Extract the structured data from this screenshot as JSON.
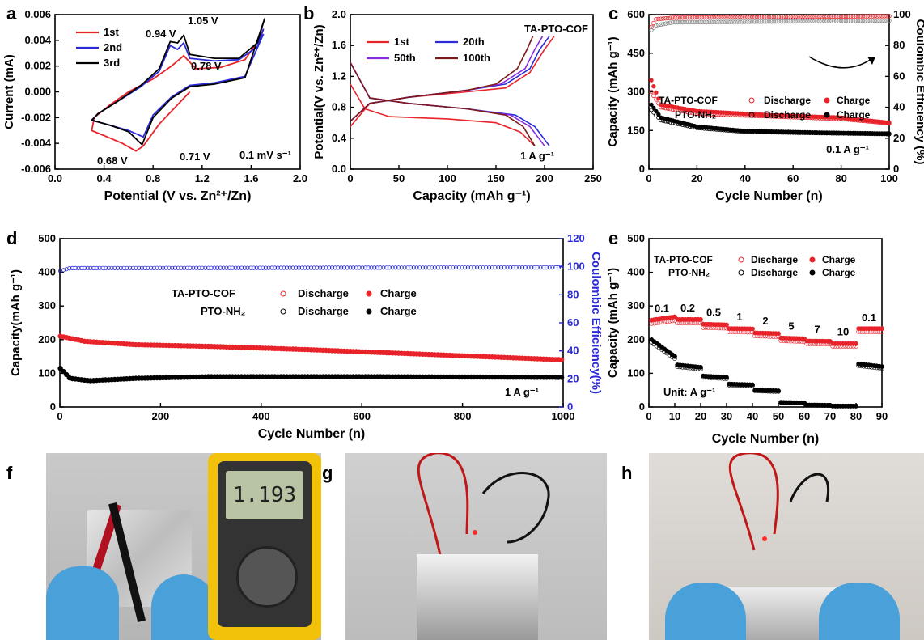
{
  "colors": {
    "red": "#e8232a",
    "blue": "#2a2ad8",
    "purple": "#8a2be2",
    "brown": "#7a1a1a",
    "black": "#000000"
  },
  "chart_data": [
    {
      "panel": "a",
      "type": "line",
      "xlabel": "Potential (V vs. Zn²⁺/Zn)",
      "ylabel": "Current (mA)",
      "xlim": [
        0.0,
        2.0
      ],
      "ylim": [
        -0.006,
        0.006
      ],
      "xticks": [
        "0.0",
        "0.4",
        "0.8",
        "1.2",
        "1.6",
        "2.0"
      ],
      "yticks": [
        "0.006",
        "0.004",
        "0.002",
        "0.000",
        "-0.002",
        "-0.004",
        "-0.006"
      ],
      "legend": [
        "1st",
        "2nd",
        "3rd"
      ],
      "annotations": [
        "1.05 V",
        "0.94 V",
        "0.78 V",
        "0.71 V",
        "0.68 V",
        "0.1 mV s⁻¹"
      ],
      "series": [
        {
          "name": "1st",
          "color": "#e8232a",
          "x": [
            1.1,
            0.85,
            0.72,
            0.66,
            0.55,
            0.4,
            0.3,
            0.32,
            0.45,
            0.6,
            0.8,
            0.95,
            1.05,
            1.15,
            1.35,
            1.55,
            1.66,
            1.7
          ],
          "y": [
            0.0,
            -0.0025,
            -0.0042,
            -0.0046,
            -0.004,
            -0.0034,
            -0.003,
            -0.002,
            -0.001,
            0.0,
            0.001,
            0.002,
            0.0028,
            0.0018,
            0.0019,
            0.0025,
            0.004,
            0.0048
          ]
        },
        {
          "name": "2nd",
          "color": "#2a2ad8",
          "x": [
            1.7,
            1.55,
            1.3,
            1.1,
            0.95,
            0.8,
            0.72,
            0.6,
            0.45,
            0.3,
            0.35,
            0.5,
            0.7,
            0.85,
            0.94,
            1.0,
            1.05,
            1.1,
            1.3,
            1.5,
            1.65,
            1.7
          ],
          "y": [
            0.0045,
            0.0012,
            0.0007,
            0.0005,
            -0.0004,
            -0.0018,
            -0.0035,
            -0.003,
            -0.0026,
            -0.0022,
            -0.0017,
            -0.0008,
            0.0004,
            0.0016,
            0.0036,
            0.0033,
            0.0038,
            0.0026,
            0.0024,
            0.0025,
            0.0035,
            0.0049
          ]
        },
        {
          "name": "3rd",
          "color": "#000000",
          "x": [
            1.71,
            1.55,
            1.3,
            1.1,
            0.95,
            0.8,
            0.71,
            0.6,
            0.45,
            0.3,
            0.35,
            0.5,
            0.7,
            0.85,
            0.94,
            1.0,
            1.05,
            1.1,
            1.3,
            1.5,
            1.65,
            1.71
          ],
          "y": [
            0.0057,
            0.0011,
            0.0006,
            0.0004,
            -0.0005,
            -0.002,
            -0.0041,
            -0.0031,
            -0.0026,
            -0.0022,
            -0.0017,
            -0.0008,
            0.0005,
            0.0018,
            0.0039,
            0.0038,
            0.0044,
            0.0029,
            0.0026,
            0.0026,
            0.0038,
            0.0057
          ]
        }
      ]
    },
    {
      "panel": "b",
      "type": "line",
      "xlabel": "Capacity (mAh g⁻¹)",
      "ylabel": "Potential(V vs. Zn²⁺/Zn)",
      "xlim": [
        0,
        250
      ],
      "ylim": [
        0.0,
        2.0
      ],
      "xticks": [
        "0",
        "50",
        "100",
        "150",
        "200",
        "250"
      ],
      "yticks": [
        "2.0",
        "1.6",
        "1.2",
        "0.8",
        "0.4",
        "0.0"
      ],
      "legend": [
        "1st",
        "20th",
        "50th",
        "100th"
      ],
      "annotations": [
        "TA-PTO-COF",
        "1 A g⁻¹"
      ],
      "series": [
        {
          "name": "1st",
          "color": "#e8232a",
          "discharge_x": [
            0,
            15,
            40,
            100,
            150,
            175,
            190
          ],
          "discharge_y": [
            1.1,
            0.78,
            0.68,
            0.65,
            0.6,
            0.48,
            0.3
          ],
          "charge_x": [
            0,
            20,
            60,
            120,
            160,
            185,
            200,
            210
          ],
          "charge_y": [
            0.55,
            0.85,
            0.93,
            1.0,
            1.05,
            1.25,
            1.55,
            1.72
          ]
        },
        {
          "name": "20th",
          "color": "#2a2ad8",
          "discharge_x": [
            0,
            20,
            60,
            120,
            170,
            190,
            205
          ],
          "discharge_y": [
            1.38,
            0.92,
            0.85,
            0.78,
            0.7,
            0.55,
            0.3
          ],
          "charge_x": [
            0,
            20,
            60,
            120,
            160,
            185,
            195,
            205
          ],
          "charge_y": [
            0.62,
            0.85,
            0.93,
            1.02,
            1.1,
            1.3,
            1.55,
            1.72
          ]
        },
        {
          "name": "50th",
          "color": "#8a2be2",
          "discharge_x": [
            0,
            20,
            60,
            120,
            165,
            185,
            200
          ],
          "discharge_y": [
            1.38,
            0.92,
            0.85,
            0.78,
            0.7,
            0.55,
            0.3
          ],
          "charge_x": [
            0,
            20,
            60,
            120,
            155,
            180,
            190,
            198
          ],
          "charge_y": [
            0.62,
            0.85,
            0.93,
            1.02,
            1.1,
            1.3,
            1.55,
            1.72
          ]
        },
        {
          "name": "100th",
          "color": "#7a1a1a",
          "discharge_x": [
            0,
            20,
            60,
            120,
            160,
            178,
            190
          ],
          "discharge_y": [
            1.38,
            0.92,
            0.85,
            0.78,
            0.7,
            0.55,
            0.3
          ],
          "charge_x": [
            0,
            20,
            60,
            120,
            150,
            172,
            182,
            188
          ],
          "charge_y": [
            0.62,
            0.85,
            0.93,
            1.02,
            1.1,
            1.3,
            1.55,
            1.72
          ]
        }
      ]
    },
    {
      "panel": "c",
      "type": "scatter",
      "xlabel": "Cycle Number (n)",
      "ylabel": "Capacity (mAh g⁻¹)",
      "y2label": "Coulombic Efficiency (%)",
      "xlim": [
        0,
        100
      ],
      "ylim": [
        0,
        600
      ],
      "y2lim": [
        0,
        100
      ],
      "xticks": [
        "0",
        "20",
        "40",
        "60",
        "80",
        "100"
      ],
      "yticks": [
        "600",
        "450",
        "300",
        "150",
        "0"
      ],
      "y2ticks": [
        "100",
        "80",
        "60",
        "40",
        "20",
        "0"
      ],
      "legend": [
        "TA-PTO-COF",
        "PTO-NH₂",
        "Discharge",
        "Charge"
      ],
      "annotations": [
        "0.1 A g⁻¹"
      ],
      "series": [
        {
          "name": "TA-PTO-COF Charge",
          "color": "#e8232a",
          "filled": true,
          "curve": [
            [
              1,
              345
            ],
            [
              5,
              250
            ],
            [
              20,
              225
            ],
            [
              50,
              210
            ],
            [
              80,
              200
            ],
            [
              100,
              180
            ]
          ]
        },
        {
          "name": "TA-PTO-COF Discharge",
          "color": "#e8232a",
          "filled": false,
          "curve": [
            [
              1,
              300
            ],
            [
              5,
              240
            ],
            [
              20,
              215
            ],
            [
              50,
              205
            ],
            [
              80,
              195
            ],
            [
              100,
              178
            ]
          ]
        },
        {
          "name": "PTO-NH₂ Charge",
          "color": "#000000",
          "filled": true,
          "curve": [
            [
              1,
              250
            ],
            [
              5,
              200
            ],
            [
              20,
              165
            ],
            [
              40,
              148
            ],
            [
              70,
              142
            ],
            [
              100,
              138
            ]
          ]
        },
        {
          "name": "PTO-NH₂ Discharge",
          "color": "#000000",
          "filled": false,
          "curve": [
            [
              1,
              230
            ],
            [
              5,
              190
            ],
            [
              20,
              160
            ],
            [
              40,
              145
            ],
            [
              70,
              140
            ],
            [
              100,
              136
            ]
          ]
        },
        {
          "name": "TA-PTO-COF CE",
          "color": "#e8232a",
          "filled": false,
          "axis": "y2",
          "curve": [
            [
              1,
              92
            ],
            [
              3,
              97
            ],
            [
              10,
              98
            ],
            [
              100,
              99
            ]
          ]
        },
        {
          "name": "PTO-NH₂ CE",
          "color": "#888888",
          "filled": false,
          "axis": "y2",
          "curve": [
            [
              1,
              90
            ],
            [
              3,
              93
            ],
            [
              10,
              95
            ],
            [
              100,
              96
            ]
          ]
        }
      ]
    },
    {
      "panel": "d",
      "type": "scatter",
      "xlabel": "Cycle Number (n)",
      "ylabel": "Capacity(mAh g⁻¹)",
      "y2label": "Coulombic Efficiency(%)",
      "xlim": [
        0,
        1000
      ],
      "ylim": [
        0,
        500
      ],
      "y2lim": [
        0,
        120
      ],
      "xticks": [
        "0",
        "200",
        "400",
        "600",
        "800",
        "1000"
      ],
      "yticks": [
        "500",
        "400",
        "300",
        "200",
        "100",
        "0"
      ],
      "y2ticks": [
        "120",
        "100",
        "80",
        "60",
        "40",
        "20",
        "0"
      ],
      "legend": [
        "TA-PTO-COF",
        "PTO-NH₂",
        "Discharge",
        "Charge"
      ],
      "annotations": [
        "1 A g⁻¹"
      ],
      "series": [
        {
          "name": "TA-PTO-COF",
          "color": "#e8232a",
          "curve": [
            [
              1,
              210
            ],
            [
              50,
              195
            ],
            [
              150,
              185
            ],
            [
              300,
              180
            ],
            [
              500,
              170
            ],
            [
              800,
              152
            ],
            [
              1000,
              140
            ]
          ]
        },
        {
          "name": "PTO-NH₂",
          "color": "#000000",
          "curve": [
            [
              1,
              115
            ],
            [
              20,
              85
            ],
            [
              60,
              78
            ],
            [
              150,
              85
            ],
            [
              300,
              90
            ],
            [
              600,
              90
            ],
            [
              1000,
              88
            ]
          ]
        },
        {
          "name": "CE",
          "color": "#2a2ad8",
          "axis": "y2",
          "curve": [
            [
              1,
              97
            ],
            [
              20,
              99
            ],
            [
              1000,
              99.5
            ]
          ]
        }
      ]
    },
    {
      "panel": "e",
      "type": "scatter",
      "xlabel": "Cycle Number (n)",
      "ylabel": "Capacity (mAh g⁻¹)",
      "xlim": [
        0,
        90
      ],
      "ylim": [
        0,
        500
      ],
      "xticks": [
        "0",
        "10",
        "20",
        "30",
        "40",
        "50",
        "60",
        "70",
        "80",
        "90"
      ],
      "yticks": [
        "500",
        "400",
        "300",
        "200",
        "100",
        "0"
      ],
      "legend": [
        "TA-PTO-COF",
        "PTO-NH₂",
        "Discharge",
        "Charge"
      ],
      "rate_labels": [
        "0.1",
        "0.2",
        "0.5",
        "1",
        "2",
        "5",
        "7",
        "10",
        "0.1"
      ],
      "annotations": [
        "Unit: A g⁻¹"
      ],
      "series": [
        {
          "name": "TA-PTO-COF",
          "color": "#e8232a",
          "steps": [
            [
              1,
              10,
              258,
              268
            ],
            [
              11,
              20,
              260,
              260
            ],
            [
              21,
              30,
              246,
              244
            ],
            [
              31,
              40,
              233,
              232
            ],
            [
              41,
              50,
              220,
              218
            ],
            [
              51,
              60,
              205,
              203
            ],
            [
              61,
              70,
              196,
              195
            ],
            [
              71,
              80,
              188,
              188
            ],
            [
              81,
              90,
              233,
              233
            ]
          ]
        },
        {
          "name": "PTO-NH₂",
          "color": "#000000",
          "steps": [
            [
              1,
              10,
              200,
              150
            ],
            [
              11,
              20,
              125,
              118
            ],
            [
              21,
              30,
              92,
              88
            ],
            [
              31,
              40,
              68,
              66
            ],
            [
              41,
              50,
              50,
              48
            ],
            [
              51,
              60,
              14,
              12
            ],
            [
              61,
              70,
              6,
              5
            ],
            [
              71,
              80,
              3,
              3
            ],
            [
              81,
              90,
              128,
              120
            ]
          ]
        }
      ]
    }
  ],
  "photos": {
    "f_display": "1.193"
  }
}
